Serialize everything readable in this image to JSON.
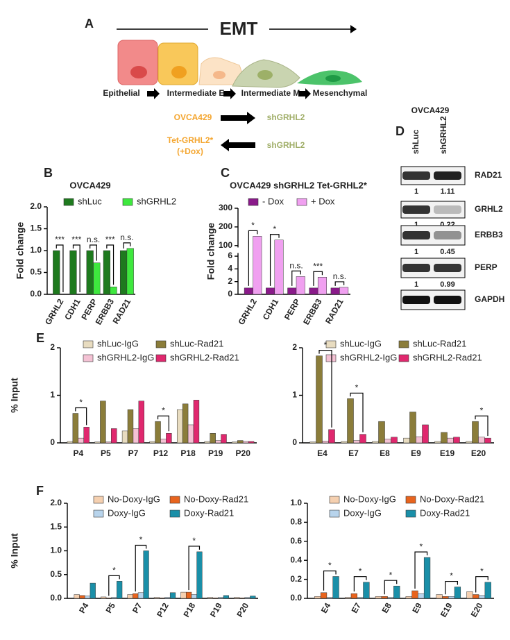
{
  "diagram": {
    "panel_label": "A",
    "title": "EMT",
    "stages": [
      "Epithelial",
      "Intermediate E",
      "Intermediate M",
      "Mesenchymal"
    ],
    "rows": [
      {
        "left": [
          "OVCA429"
        ],
        "right": "shGRHL2"
      },
      {
        "left": [
          "Tet-GRHL2*",
          "(+Dox)"
        ],
        "right": "shGRHL2"
      }
    ]
  },
  "blot": {
    "panel_label": "D",
    "title": "OVCA429",
    "lanes": [
      "shLuc",
      "shGRHL2"
    ],
    "rows": [
      {
        "protein": "RAD21",
        "quant": [
          1,
          1.11
        ]
      },
      {
        "protein": "GRHL2",
        "quant": [
          1,
          0.22
        ]
      },
      {
        "protein": "ERBB3",
        "quant": [
          1,
          0.45
        ]
      },
      {
        "protein": "PERP",
        "quant": [
          1,
          0.99
        ]
      },
      {
        "protein": "GAPDH"
      }
    ]
  },
  "chart_data": [
    {
      "type": "bar",
      "panel_label": "B",
      "title": "OVCA429",
      "ylabel": "Fold change",
      "categories": [
        "GRHL2",
        "CDH1",
        "PERP",
        "ERBB3",
        "RAD21"
      ],
      "series": [
        {
          "name": "shLuc",
          "color": "#1e7a1e",
          "values": [
            1,
            1,
            1,
            1,
            1
          ]
        },
        {
          "name": "shGRHL2",
          "color": "#3ee83e",
          "values": [
            0,
            0,
            0.72,
            0.17,
            1.05
          ]
        }
      ],
      "ylim": [
        0,
        2
      ],
      "yticks": [
        {
          "value": 0,
          "label": "0.0"
        },
        {
          "value": 0.5,
          "label": "0.5"
        },
        {
          "value": 1,
          "label": "1.0"
        },
        {
          "value": 1.5,
          "label": "1.5"
        },
        {
          "value": 2,
          "label": "2.0"
        }
      ],
      "significance": [
        "***",
        "***",
        "n.s.",
        "***",
        "n.s."
      ]
    },
    {
      "type": "bar",
      "panel_label": "C",
      "title": "OVCA429 shGRHL2 Tet-GRHL2*",
      "ylabel": "Fold change",
      "categories": [
        "GRHL2",
        "CDH1",
        "PERP",
        "ERBB3",
        "RAD21"
      ],
      "series": [
        {
          "name": "- Dox",
          "color": "#8a1a8a",
          "values": [
            1,
            1,
            1,
            1,
            1
          ]
        },
        {
          "name": "+ Dox",
          "color": "#f0a0f0",
          "values": [
            150,
            130,
            2.8,
            2.7,
            1.1
          ]
        }
      ],
      "ylim": [
        0,
        300
      ],
      "axis_break": [
        6.5,
        90
      ],
      "yticks": [
        0,
        2,
        4,
        6,
        100,
        200,
        300
      ],
      "significance": [
        "*",
        "*",
        "n.s.",
        "***",
        "n.s."
      ]
    },
    {
      "type": "bar",
      "panel_label": "E",
      "ylabel": "% Input",
      "categories": [
        "P4",
        "P5",
        "P7",
        "P12",
        "P18",
        "P19",
        "P20"
      ],
      "series": [
        {
          "name": "shLuc-IgG",
          "color": "#e8dcc0",
          "values": [
            0.03,
            0.02,
            0.25,
            0.03,
            0.7,
            0.03,
            0.02
          ]
        },
        {
          "name": "shLuc-Rad21",
          "color": "#8b7d3a",
          "values": [
            0.62,
            0.88,
            0.7,
            0.45,
            0.82,
            0.2,
            0.05
          ]
        },
        {
          "name": "shGRHL2-IgG",
          "color": "#f4c2d4",
          "values": [
            0.1,
            0.02,
            0.3,
            0.08,
            0.38,
            0.05,
            0.03
          ]
        },
        {
          "name": "shGRHL2-Rad21",
          "color": "#e0286e",
          "values": [
            0.33,
            0.3,
            0.88,
            0.2,
            0.9,
            0.18,
            0.03
          ]
        }
      ],
      "ylim": [
        0,
        2
      ],
      "yticks": [
        0,
        1,
        2
      ],
      "significance": [
        "*",
        null,
        null,
        "*",
        null,
        null,
        null
      ]
    },
    {
      "type": "bar",
      "categories": [
        "E4",
        "E7",
        "E8",
        "E9",
        "E19",
        "E20"
      ],
      "series": [
        {
          "name": "shLuc-IgG",
          "color": "#e8dcc0",
          "values": [
            0.02,
            0.03,
            0.03,
            0.1,
            0.03,
            0.03
          ]
        },
        {
          "name": "shLuc-Rad21",
          "color": "#8b7d3a",
          "values": [
            1.83,
            0.93,
            0.45,
            0.65,
            0.22,
            0.45
          ]
        },
        {
          "name": "shGRHL2-IgG",
          "color": "#f4c2d4",
          "values": [
            0.04,
            0.05,
            0.08,
            0.13,
            0.1,
            0.12
          ]
        },
        {
          "name": "shGRHL2-Rad21",
          "color": "#e0286e",
          "values": [
            0.28,
            0.18,
            0.12,
            0.38,
            0.12,
            0.1
          ]
        }
      ],
      "ylim": [
        0,
        2
      ],
      "yticks": [
        0,
        1,
        2
      ],
      "significance": [
        "*",
        "*",
        null,
        null,
        null,
        "*"
      ]
    },
    {
      "type": "bar",
      "panel_label": "F",
      "ylabel": "% Input",
      "categories": [
        "P4",
        "P5",
        "P7",
        "P12",
        "P18",
        "P19",
        "P20"
      ],
      "series": [
        {
          "name": "No-Doxy-IgG",
          "color": "#f5d0b0",
          "values": [
            0.08,
            0.03,
            0.08,
            0.02,
            0.13,
            0.02,
            0.02
          ]
        },
        {
          "name": "No-Doxy-Rad21",
          "color": "#e8641e",
          "values": [
            0.06,
            0.01,
            0.1,
            0.01,
            0.13,
            0.01,
            0.01
          ]
        },
        {
          "name": "Doxy-IgG",
          "color": "#b8d4ec",
          "values": [
            0.05,
            0.02,
            0.12,
            0.02,
            0.08,
            0.02,
            0.02
          ]
        },
        {
          "name": "Doxy-Rad21",
          "color": "#1a8fa8",
          "values": [
            0.32,
            0.36,
            1.0,
            0.12,
            0.98,
            0.06,
            0.05
          ]
        }
      ],
      "ylim": [
        0,
        2
      ],
      "yticks": [
        {
          "value": 0,
          "label": "0.0"
        },
        {
          "value": 0.5,
          "label": "0.5"
        },
        {
          "value": 1,
          "label": "1.0"
        },
        {
          "value": 1.5,
          "label": "1.5"
        },
        {
          "value": 2,
          "label": "2.0"
        }
      ],
      "significance": [
        null,
        "*",
        "*",
        null,
        "*",
        null,
        null
      ]
    },
    {
      "type": "bar",
      "categories": [
        "E4",
        "E7",
        "E8",
        "E9",
        "E19",
        "E20"
      ],
      "series": [
        {
          "name": "No-Doxy-IgG",
          "color": "#f5d0b0",
          "values": [
            0.02,
            0.01,
            0.02,
            0.02,
            0.04,
            0.07
          ]
        },
        {
          "name": "No-Doxy-Rad21",
          "color": "#e8641e",
          "values": [
            0.06,
            0.05,
            0.02,
            0.08,
            0.02,
            0.04
          ]
        },
        {
          "name": "Doxy-IgG",
          "color": "#b8d4ec",
          "values": [
            0.01,
            0.01,
            0.01,
            0.05,
            0.02,
            0.03
          ]
        },
        {
          "name": "Doxy-Rad21",
          "color": "#1a8fa8",
          "values": [
            0.23,
            0.17,
            0.13,
            0.43,
            0.12,
            0.17
          ]
        }
      ],
      "ylim": [
        0,
        1
      ],
      "yticks": [
        {
          "value": 0,
          "label": "0.0"
        },
        {
          "value": 0.2,
          "label": "0.2"
        },
        {
          "value": 0.4,
          "label": "0.4"
        },
        {
          "value": 0.6,
          "label": "0.6"
        },
        {
          "value": 0.8,
          "label": "0.8"
        },
        {
          "value": 1,
          "label": "1.0"
        }
      ],
      "significance": [
        "*",
        "*",
        "*",
        "*",
        "*",
        "*"
      ]
    }
  ]
}
